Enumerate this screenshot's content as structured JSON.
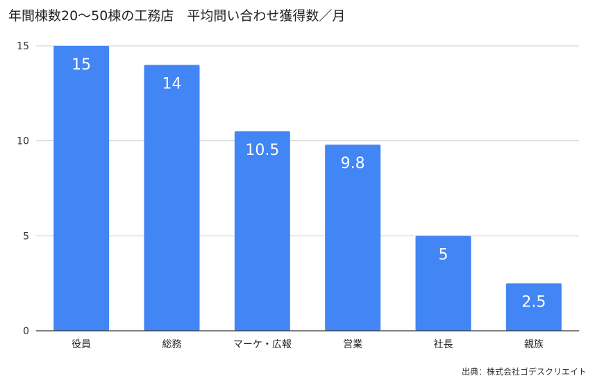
{
  "chart_data": {
    "type": "bar",
    "title": "年間棟数20～50棟の工務店　平均問い合わせ獲得数／月",
    "categories": [
      "役員",
      "総務",
      "マーケ・広報",
      "営業",
      "社長",
      "親族"
    ],
    "values": [
      15,
      14,
      10.5,
      9.8,
      5,
      2.5
    ],
    "data_labels": [
      "15",
      "14",
      "10.5",
      "9.8",
      "5",
      "2.5"
    ],
    "yticks": [
      "0",
      "5",
      "10",
      "15"
    ],
    "ylim": [
      0,
      15
    ],
    "grid": true,
    "legend": "none",
    "bar_color": "#4285F4"
  },
  "source": "出典：株式会社ゴデスクリエイト"
}
